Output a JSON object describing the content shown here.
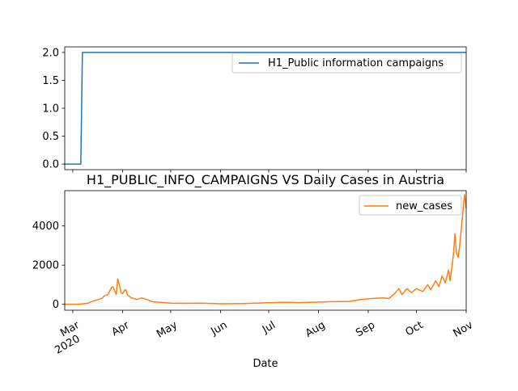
{
  "chart_data": [
    {
      "type": "line",
      "title": "",
      "xlabel": "",
      "ylabel": "",
      "ylim": [
        -0.1,
        2.1
      ],
      "yticks": [
        "0.0",
        "0.5",
        "1.0",
        "1.5",
        "2.0"
      ],
      "legend": "top-right",
      "series": [
        {
          "name": "H1_Public information campaigns",
          "color": "#1f77b4",
          "points": [
            [
              "2020-02-25",
              0
            ],
            [
              "2020-03-06",
              0
            ],
            [
              "2020-03-07",
              2
            ],
            [
              "2020-11-01",
              2
            ]
          ]
        }
      ]
    },
    {
      "type": "line",
      "title": "H1_PUBLIC_INFO_CAMPAIGNS VS Daily Cases in Austria",
      "xlabel": "Date",
      "ylabel": "",
      "ylim": [
        -300,
        5800
      ],
      "yticks": [
        "0",
        "2000",
        "4000"
      ],
      "legend": "top-right",
      "x_tick_labels": [
        "Mar\n2020",
        "Apr",
        "May",
        "Jun",
        "Jul",
        "Aug",
        "Sep",
        "Oct",
        "Nov"
      ],
      "series": [
        {
          "name": "new_cases",
          "color": "#ff7f0e",
          "points": [
            [
              "2020-02-25",
              2
            ],
            [
              "2020-03-05",
              10
            ],
            [
              "2020-03-10",
              50
            ],
            [
              "2020-03-14",
              180
            ],
            [
              "2020-03-17",
              250
            ],
            [
              "2020-03-19",
              300
            ],
            [
              "2020-03-21",
              450
            ],
            [
              "2020-03-23",
              500
            ],
            [
              "2020-03-25",
              850
            ],
            [
              "2020-03-26",
              900
            ],
            [
              "2020-03-27",
              700
            ],
            [
              "2020-03-28",
              500
            ],
            [
              "2020-03-29",
              1300
            ],
            [
              "2020-03-30",
              1000
            ],
            [
              "2020-03-31",
              600
            ],
            [
              "2020-04-01",
              550
            ],
            [
              "2020-04-02",
              700
            ],
            [
              "2020-04-03",
              750
            ],
            [
              "2020-04-04",
              500
            ],
            [
              "2020-04-06",
              350
            ],
            [
              "2020-04-08",
              300
            ],
            [
              "2020-04-10",
              250
            ],
            [
              "2020-04-13",
              330
            ],
            [
              "2020-04-16",
              250
            ],
            [
              "2020-04-20",
              120
            ],
            [
              "2020-04-25",
              100
            ],
            [
              "2020-05-01",
              60
            ],
            [
              "2020-05-10",
              50
            ],
            [
              "2020-05-20",
              60
            ],
            [
              "2020-06-01",
              30
            ],
            [
              "2020-06-15",
              40
            ],
            [
              "2020-07-01",
              80
            ],
            [
              "2020-07-10",
              100
            ],
            [
              "2020-07-20",
              90
            ],
            [
              "2020-08-01",
              110
            ],
            [
              "2020-08-10",
              140
            ],
            [
              "2020-08-20",
              150
            ],
            [
              "2020-08-28",
              250
            ],
            [
              "2020-09-03",
              300
            ],
            [
              "2020-09-10",
              330
            ],
            [
              "2020-09-14",
              300
            ],
            [
              "2020-09-18",
              600
            ],
            [
              "2020-09-20",
              800
            ],
            [
              "2020-09-22",
              500
            ],
            [
              "2020-09-25",
              800
            ],
            [
              "2020-09-28",
              600
            ],
            [
              "2020-10-01",
              800
            ],
            [
              "2020-10-05",
              650
            ],
            [
              "2020-10-08",
              1000
            ],
            [
              "2020-10-10",
              750
            ],
            [
              "2020-10-13",
              1200
            ],
            [
              "2020-10-15",
              900
            ],
            [
              "2020-10-17",
              1450
            ],
            [
              "2020-10-19",
              1100
            ],
            [
              "2020-10-21",
              1750
            ],
            [
              "2020-10-22",
              1200
            ],
            [
              "2020-10-24",
              2500
            ],
            [
              "2020-10-25",
              3600
            ],
            [
              "2020-10-26",
              2600
            ],
            [
              "2020-10-27",
              2400
            ],
            [
              "2020-10-28",
              3000
            ],
            [
              "2020-10-29",
              3900
            ],
            [
              "2020-10-30",
              4800
            ],
            [
              "2020-10-31",
              5600
            ],
            [
              "2020-11-01",
              4900
            ]
          ]
        }
      ]
    }
  ]
}
